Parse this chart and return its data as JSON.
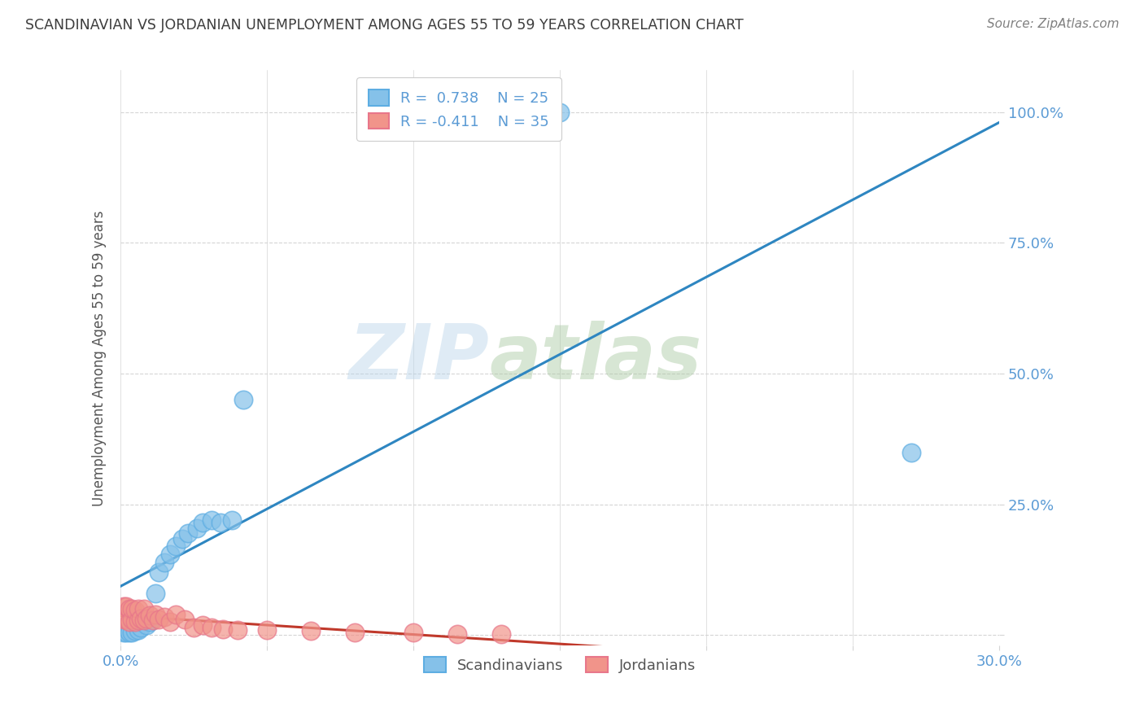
{
  "title": "SCANDINAVIAN VS JORDANIAN UNEMPLOYMENT AMONG AGES 55 TO 59 YEARS CORRELATION CHART",
  "source": "Source: ZipAtlas.com",
  "ylabel": "Unemployment Among Ages 55 to 59 years",
  "xlim": [
    0.0,
    0.3
  ],
  "ylim": [
    -0.02,
    1.08
  ],
  "yticks": [
    0.0,
    0.25,
    0.5,
    0.75,
    1.0
  ],
  "ytick_labels": [
    "",
    "25.0%",
    "50.0%",
    "75.0%",
    "100.0%"
  ],
  "xticks": [
    0.0,
    0.05,
    0.1,
    0.15,
    0.2,
    0.25,
    0.3
  ],
  "blue_color": "#85c1e9",
  "pink_color": "#f1948a",
  "blue_edge_color": "#5dade2",
  "pink_edge_color": "#e8768a",
  "blue_line_color": "#2e86c1",
  "pink_line_color": "#c0392b",
  "legend_R_blue": "R =  0.738",
  "legend_N_blue": "N = 25",
  "legend_R_pink": "R = -0.411",
  "legend_N_pink": "N = 35",
  "watermark_zip": "ZIP",
  "watermark_atlas": "atlas",
  "scandinavians_x": [
    0.001,
    0.002,
    0.003,
    0.004,
    0.005,
    0.006,
    0.007,
    0.009,
    0.01,
    0.012,
    0.013,
    0.015,
    0.017,
    0.019,
    0.021,
    0.023,
    0.026,
    0.028,
    0.031,
    0.034,
    0.038,
    0.042,
    0.12,
    0.15,
    0.27
  ],
  "scandinavians_y": [
    0.005,
    0.005,
    0.005,
    0.005,
    0.008,
    0.01,
    0.015,
    0.02,
    0.025,
    0.08,
    0.12,
    0.14,
    0.155,
    0.17,
    0.185,
    0.195,
    0.205,
    0.215,
    0.22,
    0.215,
    0.22,
    0.45,
    1.0,
    1.0,
    0.35
  ],
  "jordanians_x": [
    0.001,
    0.001,
    0.002,
    0.002,
    0.003,
    0.003,
    0.004,
    0.004,
    0.005,
    0.005,
    0.006,
    0.006,
    0.007,
    0.008,
    0.008,
    0.009,
    0.01,
    0.011,
    0.012,
    0.013,
    0.015,
    0.017,
    0.019,
    0.022,
    0.025,
    0.028,
    0.031,
    0.035,
    0.04,
    0.05,
    0.065,
    0.08,
    0.1,
    0.115,
    0.13
  ],
  "jordanians_y": [
    0.03,
    0.055,
    0.03,
    0.055,
    0.025,
    0.05,
    0.03,
    0.05,
    0.025,
    0.048,
    0.028,
    0.05,
    0.032,
    0.028,
    0.05,
    0.032,
    0.038,
    0.028,
    0.04,
    0.03,
    0.035,
    0.025,
    0.04,
    0.03,
    0.015,
    0.02,
    0.015,
    0.012,
    0.01,
    0.01,
    0.008,
    0.006,
    0.005,
    0.003,
    0.002
  ],
  "background_color": "#ffffff",
  "axis_label_color": "#5b9bd5",
  "grid_color": "#d5d5d5",
  "title_color": "#3d3d3d",
  "source_color": "#808080"
}
